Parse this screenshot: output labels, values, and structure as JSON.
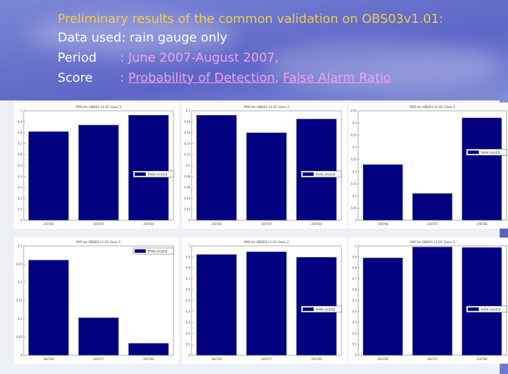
{
  "header": {
    "title": "Preliminary results of the common validation on OBS03v1.01:",
    "data_used_label": "Data used",
    "data_used_value": ": rain gauge only",
    "period_label": "Period",
    "period_value": ": June 2007-August 2007,",
    "score_label": "Score",
    "score_sep": ": ",
    "score_link1": "Probability of Detection",
    "score_comma": ", ",
    "score_link2": "False Alarm Ratio"
  },
  "colors": {
    "bar": "#000080",
    "title": "#f2c94c",
    "link": "#f0a0f0"
  },
  "chart_data": [
    {
      "type": "bar",
      "title": "POD for OBS03 v1.01 Class 1",
      "categories": [
        "200706",
        "200707",
        "200708"
      ],
      "values": [
        0.81,
        0.87,
        0.96
      ],
      "ylim": [
        0,
        1
      ],
      "yticks": [
        "0",
        "0.1",
        "0.2",
        "0.3",
        "0.4",
        "0.5",
        "0.6",
        "0.7",
        "0.8",
        "0.9",
        "1"
      ],
      "legend": "RAIN GAUGE",
      "legend_placement": "right"
    },
    {
      "type": "bar",
      "title": "POD for OBS03 v1.01 Class 2",
      "categories": [
        "200706",
        "200707",
        "200708"
      ],
      "values": [
        0.192,
        0.16,
        0.185
      ],
      "ylim": [
        0,
        0.2
      ],
      "yticks": [
        "0",
        "0.02",
        "0.04",
        "0.06",
        "0.08",
        "0.1",
        "0.12",
        "0.14",
        "0.16",
        "0.18",
        "0.2"
      ],
      "legend": "RAIN GAUGE",
      "legend_placement": "right"
    },
    {
      "type": "bar",
      "title": "POD for OBS03 v1.01 Class 3",
      "categories": [
        "200706",
        "200707",
        "200708"
      ],
      "values": [
        0.229,
        0.11,
        0.421
      ],
      "ylim": [
        0,
        0.45
      ],
      "yticks": [
        "0",
        "0.05",
        "0.1",
        "0.15",
        "0.2",
        "0.25",
        "0.3",
        "0.35",
        "0.4",
        "0.45"
      ],
      "legend": "RAIN GAUGE",
      "legend_placement": "right"
    },
    {
      "type": "bar",
      "title": "FAR for OBS03 v1.01 Class 1",
      "categories": [
        "200706",
        "200707",
        "200708"
      ],
      "values": [
        0.261,
        0.103,
        0.033
      ],
      "ylim": [
        0,
        0.3
      ],
      "yticks": [
        "0",
        "0.05",
        "0.1",
        "0.15",
        "0.2",
        "0.25",
        "0.3"
      ],
      "legend": "RAIN GAUGE",
      "legend_placement": "top-right"
    },
    {
      "type": "bar",
      "title": "FAR for OBS03 v1.01 Class 2",
      "categories": [
        "200706",
        "200707",
        "200708"
      ],
      "values": [
        0.921,
        0.946,
        0.896
      ],
      "ylim": [
        0,
        1
      ],
      "yticks": [
        "0",
        "0.1",
        "0.2",
        "0.3",
        "0.4",
        "0.5",
        "0.6",
        "0.7",
        "0.8",
        "0.9",
        "1"
      ],
      "legend": "RAIN GAUGE",
      "legend_placement": "right"
    },
    {
      "type": "bar",
      "title": "FAR for OBS03 v1.01 Class 3",
      "categories": [
        "200706",
        "200707",
        "200708"
      ],
      "values": [
        0.89,
        0.99,
        0.985
      ],
      "ylim": [
        0,
        1
      ],
      "yticks": [
        "0",
        "0.1",
        "0.2",
        "0.3",
        "0.4",
        "0.5",
        "0.6",
        "0.7",
        "0.8",
        "0.9",
        "1"
      ],
      "legend": "RAIN GAUGE",
      "legend_placement": "right"
    }
  ]
}
